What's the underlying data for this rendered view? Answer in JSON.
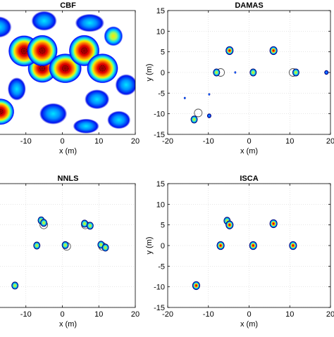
{
  "chart_data": [
    {
      "type": "heatmap",
      "title": "CBF",
      "xlabel": "x (m)",
      "ylabel": "",
      "xlim": [
        -20,
        20
      ],
      "ylim": [
        -15,
        15
      ],
      "xticks": [
        -10,
        0,
        10,
        20
      ],
      "yticks": [],
      "grid": false,
      "colormap": "jet",
      "blobs": [
        {
          "x": -10.5,
          "y": 5.2,
          "level": 1.0,
          "rx": 4.3,
          "ry": 3.8
        },
        {
          "x": -5.5,
          "y": 5.3,
          "level": 1.0,
          "rx": 4.2,
          "ry": 3.8
        },
        {
          "x": 0.8,
          "y": 1.0,
          "level": 1.0,
          "rx": 4.5,
          "ry": 3.6
        },
        {
          "x": 6.0,
          "y": 5.3,
          "level": 1.0,
          "rx": 4.2,
          "ry": 3.8
        },
        {
          "x": 11.0,
          "y": 1.0,
          "level": 1.0,
          "rx": 4.3,
          "ry": 3.6
        },
        {
          "x": -5.5,
          "y": 1.0,
          "level": 0.9,
          "rx": 4.0,
          "ry": 3.5
        },
        {
          "x": -17.0,
          "y": -9.5,
          "level": 0.9,
          "rx": 3.8,
          "ry": 3.2
        },
        {
          "x": 14.0,
          "y": 8.8,
          "level": 0.65,
          "rx": 2.6,
          "ry": 2.4
        },
        {
          "x": -5.0,
          "y": 12.5,
          "level": 0.45,
          "rx": 3.5,
          "ry": 2.4
        },
        {
          "x": 7.5,
          "y": 12.0,
          "level": 0.45,
          "rx": 4.0,
          "ry": 2.2
        },
        {
          "x": -17.5,
          "y": 11.0,
          "level": 0.5,
          "rx": 3.6,
          "ry": 2.6
        },
        {
          "x": -12.5,
          "y": -4.0,
          "level": 0.45,
          "rx": 2.5,
          "ry": 2.8
        },
        {
          "x": -2.5,
          "y": -10.0,
          "level": 0.45,
          "rx": 3.8,
          "ry": 2.6
        },
        {
          "x": 9.5,
          "y": -6.5,
          "level": 0.45,
          "rx": 3.4,
          "ry": 2.4
        },
        {
          "x": 17.5,
          "y": -3.0,
          "level": 0.4,
          "rx": 3.0,
          "ry": 2.6
        },
        {
          "x": 15.5,
          "y": -11.5,
          "level": 0.4,
          "rx": 3.2,
          "ry": 2.2
        },
        {
          "x": 6.5,
          "y": -13.0,
          "level": 0.35,
          "rx": 3.6,
          "ry": 1.8
        }
      ]
    },
    {
      "type": "scatter",
      "title": "DAMAS",
      "xlabel": "x (m)",
      "ylabel": "y (m)",
      "xlim": [
        -20,
        20
      ],
      "ylim": [
        -15,
        15
      ],
      "xticks": [
        -20,
        -10,
        0,
        10,
        20
      ],
      "yticks": [
        -15,
        -10,
        -5,
        0,
        5,
        10,
        15
      ],
      "grid": true,
      "sources": [
        {
          "x": -4.8,
          "y": 5.3,
          "level": 1.0
        },
        {
          "x": 6.0,
          "y": 5.3,
          "level": 1.0
        },
        {
          "x": -8.0,
          "y": 0.0,
          "level": 0.8
        },
        {
          "x": 1.0,
          "y": 0.0,
          "level": 0.8
        },
        {
          "x": 11.5,
          "y": 0.0,
          "level": 0.8
        },
        {
          "x": -13.5,
          "y": -11.4,
          "level": 0.7
        },
        {
          "x": -9.8,
          "y": -10.5,
          "level": 0.3
        },
        {
          "x": 19.0,
          "y": 0.0,
          "level": 0.3
        },
        {
          "x": -3.4,
          "y": 0.0,
          "level": 0.2
        },
        {
          "x": -15.8,
          "y": -6.2,
          "level": 0.15
        },
        {
          "x": -9.8,
          "y": -5.3,
          "level": 0.15
        }
      ],
      "true_sources": [
        {
          "x": -7.0,
          "y": 0.0
        },
        {
          "x": -12.5,
          "y": -9.8
        },
        {
          "x": 10.8,
          "y": 0.0
        }
      ]
    },
    {
      "type": "scatter",
      "title": "NNLS",
      "xlabel": "x (m)",
      "ylabel": "",
      "xlim": [
        -20,
        20
      ],
      "ylim": [
        -15,
        15
      ],
      "xticks": [
        -10,
        0,
        10,
        20
      ],
      "yticks": [],
      "grid": true,
      "sources": [
        {
          "x": -5.8,
          "y": 6.1,
          "level": 0.8
        },
        {
          "x": -5.1,
          "y": 5.5,
          "level": 0.5
        },
        {
          "x": 6.1,
          "y": 5.3,
          "level": 0.8
        },
        {
          "x": 7.6,
          "y": 4.8,
          "level": 0.5
        },
        {
          "x": -7.0,
          "y": 0.0,
          "level": 0.8
        },
        {
          "x": 0.8,
          "y": 0.1,
          "level": 0.7
        },
        {
          "x": 10.6,
          "y": 0.2,
          "level": 0.6
        },
        {
          "x": 11.8,
          "y": -0.5,
          "level": 0.5
        },
        {
          "x": -13.0,
          "y": -9.7,
          "level": 0.8
        }
      ],
      "true_sources": [
        {
          "x": -5.1,
          "y": 5.0
        },
        {
          "x": 6.3,
          "y": 5.0
        },
        {
          "x": 1.2,
          "y": -0.2
        },
        {
          "x": 11.0,
          "y": -0.2
        }
      ]
    },
    {
      "type": "scatter",
      "title": "ISCA",
      "xlabel": "x (m)",
      "ylabel": "y (m)",
      "xlim": [
        -20,
        20
      ],
      "ylim": [
        -15,
        15
      ],
      "xticks": [
        -20,
        -10,
        0,
        10,
        20
      ],
      "yticks": [
        -15,
        -10,
        -5,
        0,
        5,
        10,
        15
      ],
      "grid": true,
      "sources": [
        {
          "x": -5.4,
          "y": 6.0,
          "level": 0.5
        },
        {
          "x": -4.8,
          "y": 5.0,
          "level": 0.9
        },
        {
          "x": 6.0,
          "y": 5.3,
          "level": 0.9
        },
        {
          "x": -7.0,
          "y": 0.0,
          "level": 0.9
        },
        {
          "x": 1.0,
          "y": 0.0,
          "level": 0.9
        },
        {
          "x": 10.8,
          "y": 0.0,
          "level": 0.9
        },
        {
          "x": -13.0,
          "y": -9.7,
          "level": 0.9
        }
      ],
      "true_sources": []
    }
  ]
}
